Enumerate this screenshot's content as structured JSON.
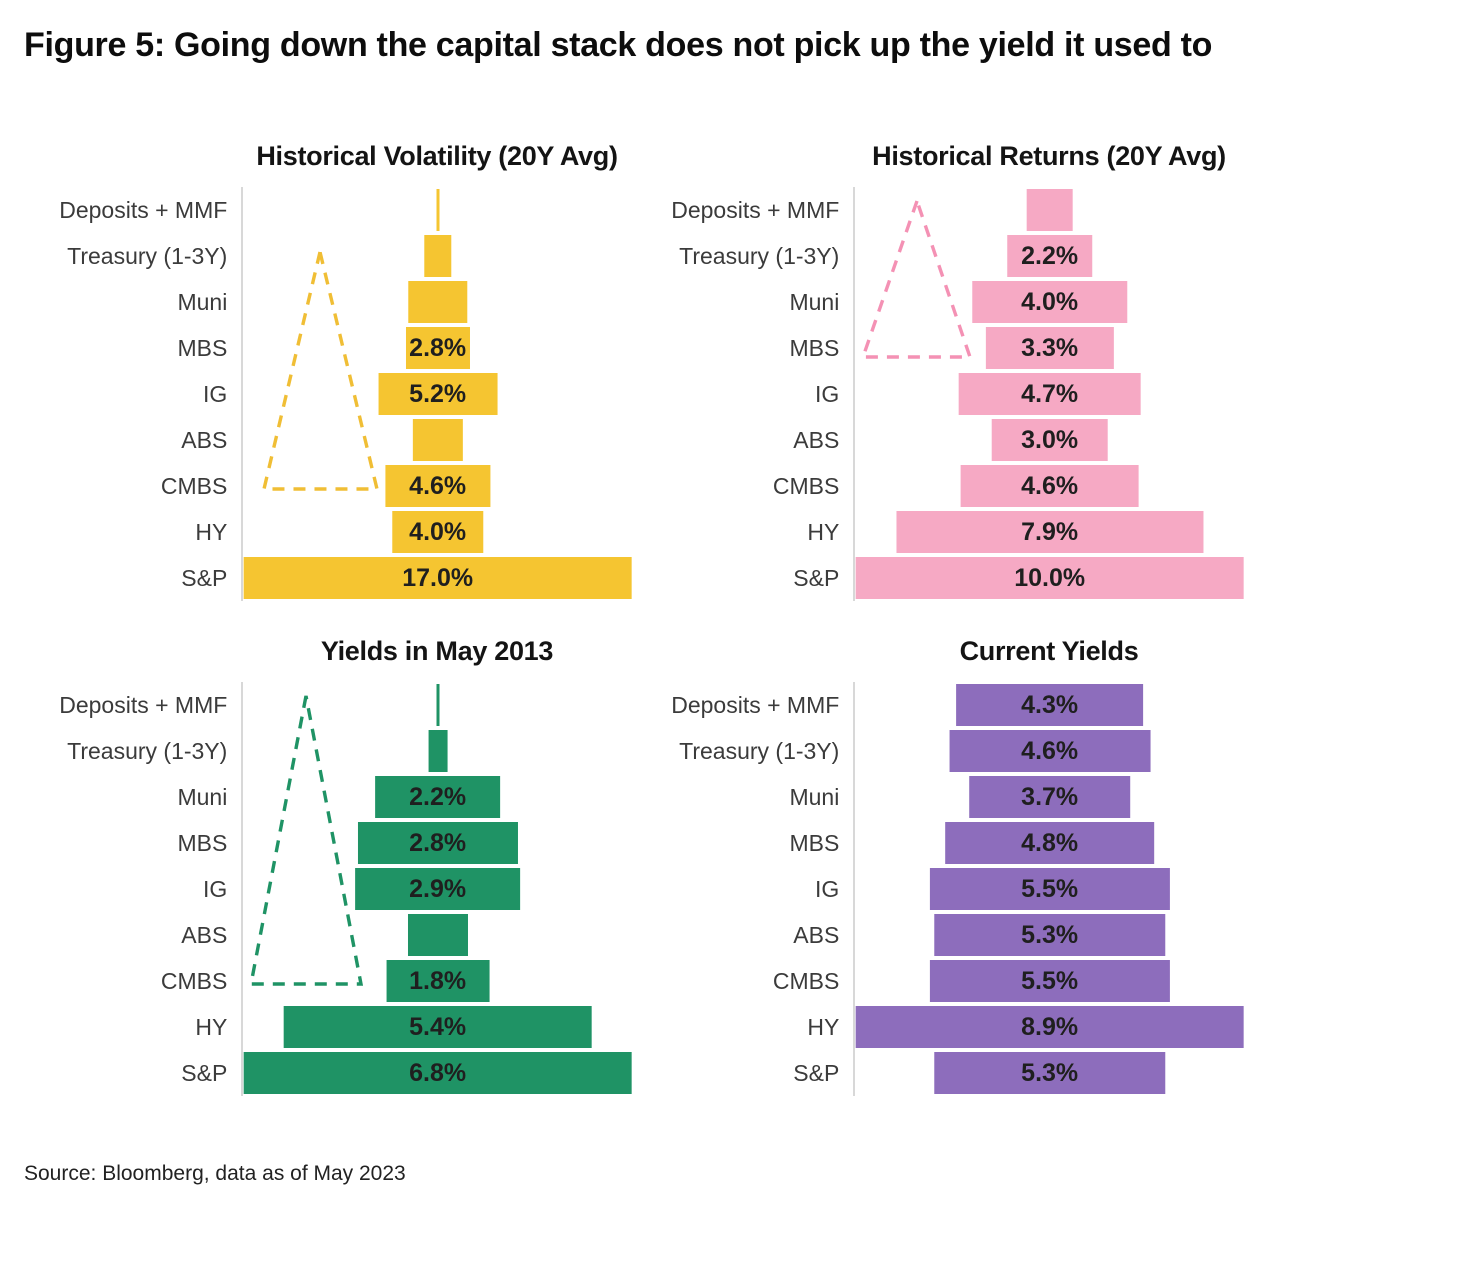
{
  "figure_title": "Figure 5: Going down the capital stack does not pick up the yield it used to",
  "source": "Source: Bloomberg, data as of May 2023",
  "categories": [
    "Deposits + MMF",
    "Treasury (1-3Y)",
    "Muni",
    "MBS",
    "IG",
    "ABS",
    "CMBS",
    "HY",
    "S&P"
  ],
  "chart_data": [
    {
      "type": "bar",
      "title": "Historical Volatility (20Y Avg)",
      "color": "#F5C531",
      "dash_color": "#F0BE35",
      "orientation": "centered-funnel",
      "categories": [
        "Deposits + MMF",
        "Treasury (1-3Y)",
        "Muni",
        "MBS",
        "IG",
        "ABS",
        "CMBS",
        "HY",
        "S&P"
      ],
      "values": [
        0.1,
        1.2,
        2.6,
        2.8,
        5.2,
        2.2,
        4.6,
        4.0,
        17.0
      ],
      "labels": [
        "",
        "",
        "",
        "2.8%",
        "5.2%",
        "",
        "4.6%",
        "4.0%",
        "17.0%"
      ],
      "max": 17.0,
      "triangle_points": [
        [
          77,
          65
        ],
        [
          21,
          302
        ],
        [
          134,
          302
        ]
      ]
    },
    {
      "type": "bar",
      "title": "Historical Returns (20Y Avg)",
      "color": "#F6A9C4",
      "dash_color": "#F491B4",
      "orientation": "centered-funnel",
      "categories": [
        "Deposits + MMF",
        "Treasury (1-3Y)",
        "Muni",
        "MBS",
        "IG",
        "ABS",
        "CMBS",
        "HY",
        "S&P"
      ],
      "values": [
        1.2,
        2.2,
        4.0,
        3.3,
        4.7,
        3.0,
        4.6,
        7.9,
        10.0
      ],
      "labels": [
        "",
        "2.2%",
        "4.0%",
        "3.3%",
        "4.7%",
        "3.0%",
        "4.6%",
        "7.9%",
        "10.0%"
      ],
      "max": 10.0,
      "triangle_points": [
        [
          62,
          14
        ],
        [
          8,
          170
        ],
        [
          115,
          170
        ]
      ]
    },
    {
      "type": "bar",
      "title": "Yields in May 2013",
      "color": "#1F9365",
      "dash_color": "#1F9365",
      "orientation": "centered-funnel",
      "categories": [
        "Deposits + MMF",
        "Treasury (1-3Y)",
        "Muni",
        "MBS",
        "IG",
        "ABS",
        "CMBS",
        "HY",
        "S&P"
      ],
      "values": [
        0.05,
        0.33,
        2.2,
        2.8,
        2.9,
        1.05,
        1.8,
        5.4,
        6.8
      ],
      "labels": [
        "",
        "",
        "2.2%",
        "2.8%",
        "2.9%",
        "",
        "1.8%",
        "5.4%",
        "6.8%"
      ],
      "max": 6.8,
      "triangle_points": [
        [
          63,
          14
        ],
        [
          8,
          302
        ],
        [
          118,
          302
        ]
      ]
    },
    {
      "type": "bar",
      "title": "Current Yields",
      "color": "#8D6DBC",
      "dash_color": null,
      "orientation": "centered-funnel",
      "categories": [
        "Deposits + MMF",
        "Treasury (1-3Y)",
        "Muni",
        "MBS",
        "IG",
        "ABS",
        "CMBS",
        "HY",
        "S&P"
      ],
      "values": [
        4.3,
        4.6,
        3.7,
        4.8,
        5.5,
        5.3,
        5.5,
        8.9,
        5.3
      ],
      "labels": [
        "4.3%",
        "4.6%",
        "3.7%",
        "4.8%",
        "5.5%",
        "5.3%",
        "5.5%",
        "8.9%",
        "5.3%"
      ],
      "max": 8.9,
      "triangle_points": null
    }
  ]
}
